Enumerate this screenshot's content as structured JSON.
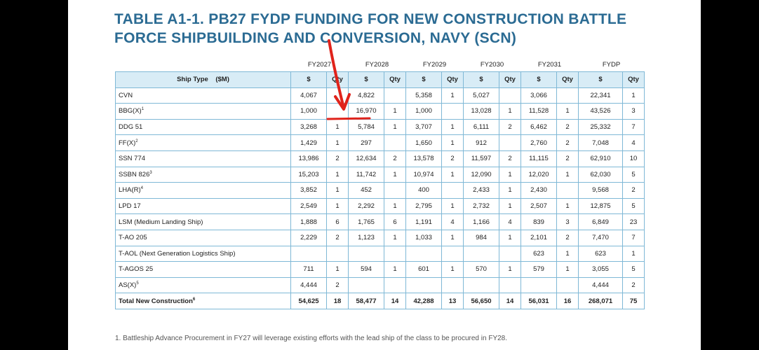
{
  "title": "TABLE A1-1.  PB27 FYDP FUNDING FOR NEW CONSTRUCTION BATTLE FORCE SHIPBUILDING AND CONVERSION, NAVY (SCN)",
  "years": [
    "FY2027",
    "FY2028",
    "FY2029",
    "FY2030",
    "FY2031",
    "FYDP"
  ],
  "header": {
    "ship_type": "Ship Type",
    "unit": "($M)",
    "dollar": "$",
    "qty": "Qty"
  },
  "rows": [
    {
      "name": "CVN",
      "sup": "",
      "cells": [
        "4,067",
        "",
        "4,822",
        "",
        "5,358",
        "1",
        "5,027",
        "",
        "3,066",
        "",
        "22,341",
        "1"
      ]
    },
    {
      "name": "BBG(X)",
      "sup": "1",
      "cells": [
        "1,000",
        "",
        "16,970",
        "1",
        "1,000",
        "",
        "13,028",
        "1",
        "11,528",
        "1",
        "43,526",
        "3"
      ]
    },
    {
      "name": "DDG 51",
      "sup": "",
      "cells": [
        "3,268",
        "1",
        "5,784",
        "1",
        "3,707",
        "1",
        "6,111",
        "2",
        "6,462",
        "2",
        "25,332",
        "7"
      ]
    },
    {
      "name": "FF(X)",
      "sup": "2",
      "cells": [
        "1,429",
        "1",
        "297",
        "",
        "1,650",
        "1",
        "912",
        "",
        "2,760",
        "2",
        "7,048",
        "4"
      ]
    },
    {
      "name": "SSN 774",
      "sup": "",
      "cells": [
        "13,986",
        "2",
        "12,634",
        "2",
        "13,578",
        "2",
        "11,597",
        "2",
        "11,115",
        "2",
        "62,910",
        "10"
      ]
    },
    {
      "name": "SSBN 826",
      "sup": "3",
      "cells": [
        "15,203",
        "1",
        "11,742",
        "1",
        "10,974",
        "1",
        "12,090",
        "1",
        "12,020",
        "1",
        "62,030",
        "5"
      ]
    },
    {
      "name": "LHA(R)",
      "sup": "4",
      "cells": [
        "3,852",
        "1",
        "452",
        "",
        "400",
        "",
        "2,433",
        "1",
        "2,430",
        "",
        "9,568",
        "2"
      ]
    },
    {
      "name": "LPD 17",
      "sup": "",
      "cells": [
        "2,549",
        "1",
        "2,292",
        "1",
        "2,795",
        "1",
        "2,732",
        "1",
        "2,507",
        "1",
        "12,875",
        "5"
      ]
    },
    {
      "name": "LSM (Medium Landing Ship)",
      "sup": "",
      "cells": [
        "1,888",
        "6",
        "1,765",
        "6",
        "1,191",
        "4",
        "1,166",
        "4",
        "839",
        "3",
        "6,849",
        "23"
      ]
    },
    {
      "name": "T-AO 205",
      "sup": "",
      "cells": [
        "2,229",
        "2",
        "1,123",
        "1",
        "1,033",
        "1",
        "984",
        "1",
        "2,101",
        "2",
        "7,470",
        "7"
      ]
    },
    {
      "name": "T-AOL (Next Generation Logistics Ship)",
      "sup": "",
      "cells": [
        "",
        "",
        "",
        "",
        "",
        "",
        "",
        "",
        "623",
        "1",
        "623",
        "1"
      ]
    },
    {
      "name": "T-AGOS 25",
      "sup": "",
      "cells": [
        "711",
        "1",
        "594",
        "1",
        "601",
        "1",
        "570",
        "1",
        "579",
        "1",
        "3,055",
        "5"
      ]
    },
    {
      "name": "AS(X)",
      "sup": "5",
      "cells": [
        "4,444",
        "2",
        "",
        "",
        "",
        "",
        "",
        "",
        "",
        "",
        "4,444",
        "2"
      ]
    }
  ],
  "total": {
    "name": "Total New Construction",
    "sup": "6",
    "cells": [
      "54,625",
      "18",
      "58,477",
      "14",
      "42,288",
      "13",
      "56,650",
      "14",
      "56,031",
      "16",
      "268,071",
      "75"
    ]
  },
  "footnote": "1. Battleship Advance Procurement in FY27 will leverage existing efforts with the lead ship of the class to be procured in FY28.",
  "annotation": {
    "color": "#e0231b"
  },
  "colors": {
    "title": "#2b6b93",
    "header_bg": "#d8ecf6",
    "border": "#7fb8d6",
    "background": "#000000"
  }
}
